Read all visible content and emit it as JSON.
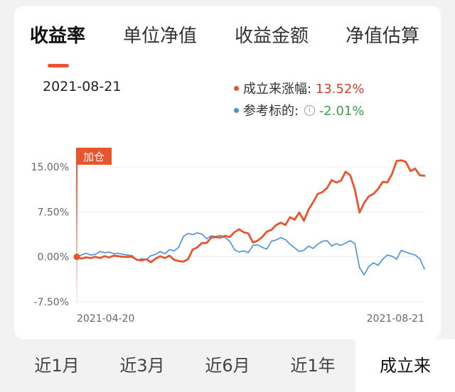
{
  "tabs": [
    {
      "label": "收益率",
      "active": true
    },
    {
      "label": "单位净值",
      "active": false
    },
    {
      "label": "收益金额",
      "active": false
    },
    {
      "label": "净值估算",
      "active": false
    }
  ],
  "header": {
    "date": "2021-08-21",
    "fund_label": "成立来涨幅:",
    "fund_value": "13.52%",
    "benchmark_label": "参考标的:",
    "benchmark_value": "-2.01%"
  },
  "periods": [
    {
      "label": "近1月",
      "active": false
    },
    {
      "label": "近3月",
      "active": false
    },
    {
      "label": "近6月",
      "active": false
    },
    {
      "label": "近1年",
      "active": false
    },
    {
      "label": "成立来",
      "active": true
    }
  ],
  "colors": {
    "fund": "#e8542c",
    "benchmark": "#4a90d9",
    "positive": "#d8402a",
    "negative": "#3aa34a"
  },
  "chart_data": {
    "type": "line",
    "x_start": "2021-04-20",
    "x_end": "2021-08-21",
    "x_tick_labels": [
      "2021-04-20",
      "2021-08-21"
    ],
    "y_ticks": [
      "15.00%",
      "7.50%",
      "0.00%",
      "-7.50%"
    ],
    "ylim": [
      -7.5,
      15.0
    ],
    "marker_label": "加仓",
    "series": [
      {
        "name": "成立来涨幅",
        "color": "#e8542c",
        "values": [
          0.0,
          -0.3,
          -0.1,
          -0.2,
          0.0,
          -0.2,
          0.1,
          -0.1,
          0.2,
          0.1,
          0.0,
          0.0,
          0.0,
          -0.5,
          -0.6,
          -0.4,
          -0.9,
          -0.3,
          0.1,
          -0.2,
          0.2,
          -0.5,
          -0.7,
          -0.8,
          -0.4,
          1.2,
          1.6,
          2.3,
          2.3,
          3.2,
          3.3,
          3.2,
          3.5,
          3.3,
          4.1,
          4.6,
          4.1,
          3.9,
          2.4,
          2.7,
          3.3,
          4.2,
          4.5,
          5.3,
          5.7,
          5.3,
          6.6,
          6.2,
          7.4,
          6.0,
          7.9,
          9.1,
          10.5,
          10.8,
          11.5,
          12.8,
          12.4,
          12.7,
          14.2,
          13.6,
          11.2,
          7.4,
          9.0,
          10.1,
          10.5,
          11.3,
          12.5,
          12.4,
          13.8,
          16.0,
          16.1,
          15.8,
          14.3,
          14.7,
          13.6,
          13.52
        ]
      },
      {
        "name": "参考标的",
        "color": "#4a90d9",
        "values": [
          0.0,
          0.3,
          0.6,
          0.3,
          0.4,
          0.9,
          0.7,
          0.8,
          0.5,
          0.6,
          0.4,
          0.3,
          0.2,
          -0.6,
          -0.3,
          -0.5,
          0.2,
          0.4,
          0.9,
          0.5,
          1.2,
          1.0,
          1.6,
          3.4,
          3.9,
          3.7,
          4.0,
          3.8,
          3.0,
          3.5,
          3.4,
          3.6,
          3.2,
          2.6,
          1.2,
          0.8,
          1.0,
          0.7,
          1.9,
          2.0,
          1.6,
          1.3,
          2.6,
          2.8,
          3.2,
          2.9,
          2.1,
          1.5,
          0.9,
          1.1,
          1.8,
          1.4,
          2.1,
          2.6,
          2.7,
          1.8,
          2.2,
          1.9,
          2.3,
          2.7,
          2.2,
          -1.8,
          -3.0,
          -1.6,
          -1.0,
          -1.4,
          -0.4,
          0.3,
          0.1,
          -0.4,
          1.1,
          0.8,
          0.5,
          0.3,
          -0.3,
          -2.01
        ]
      }
    ]
  }
}
